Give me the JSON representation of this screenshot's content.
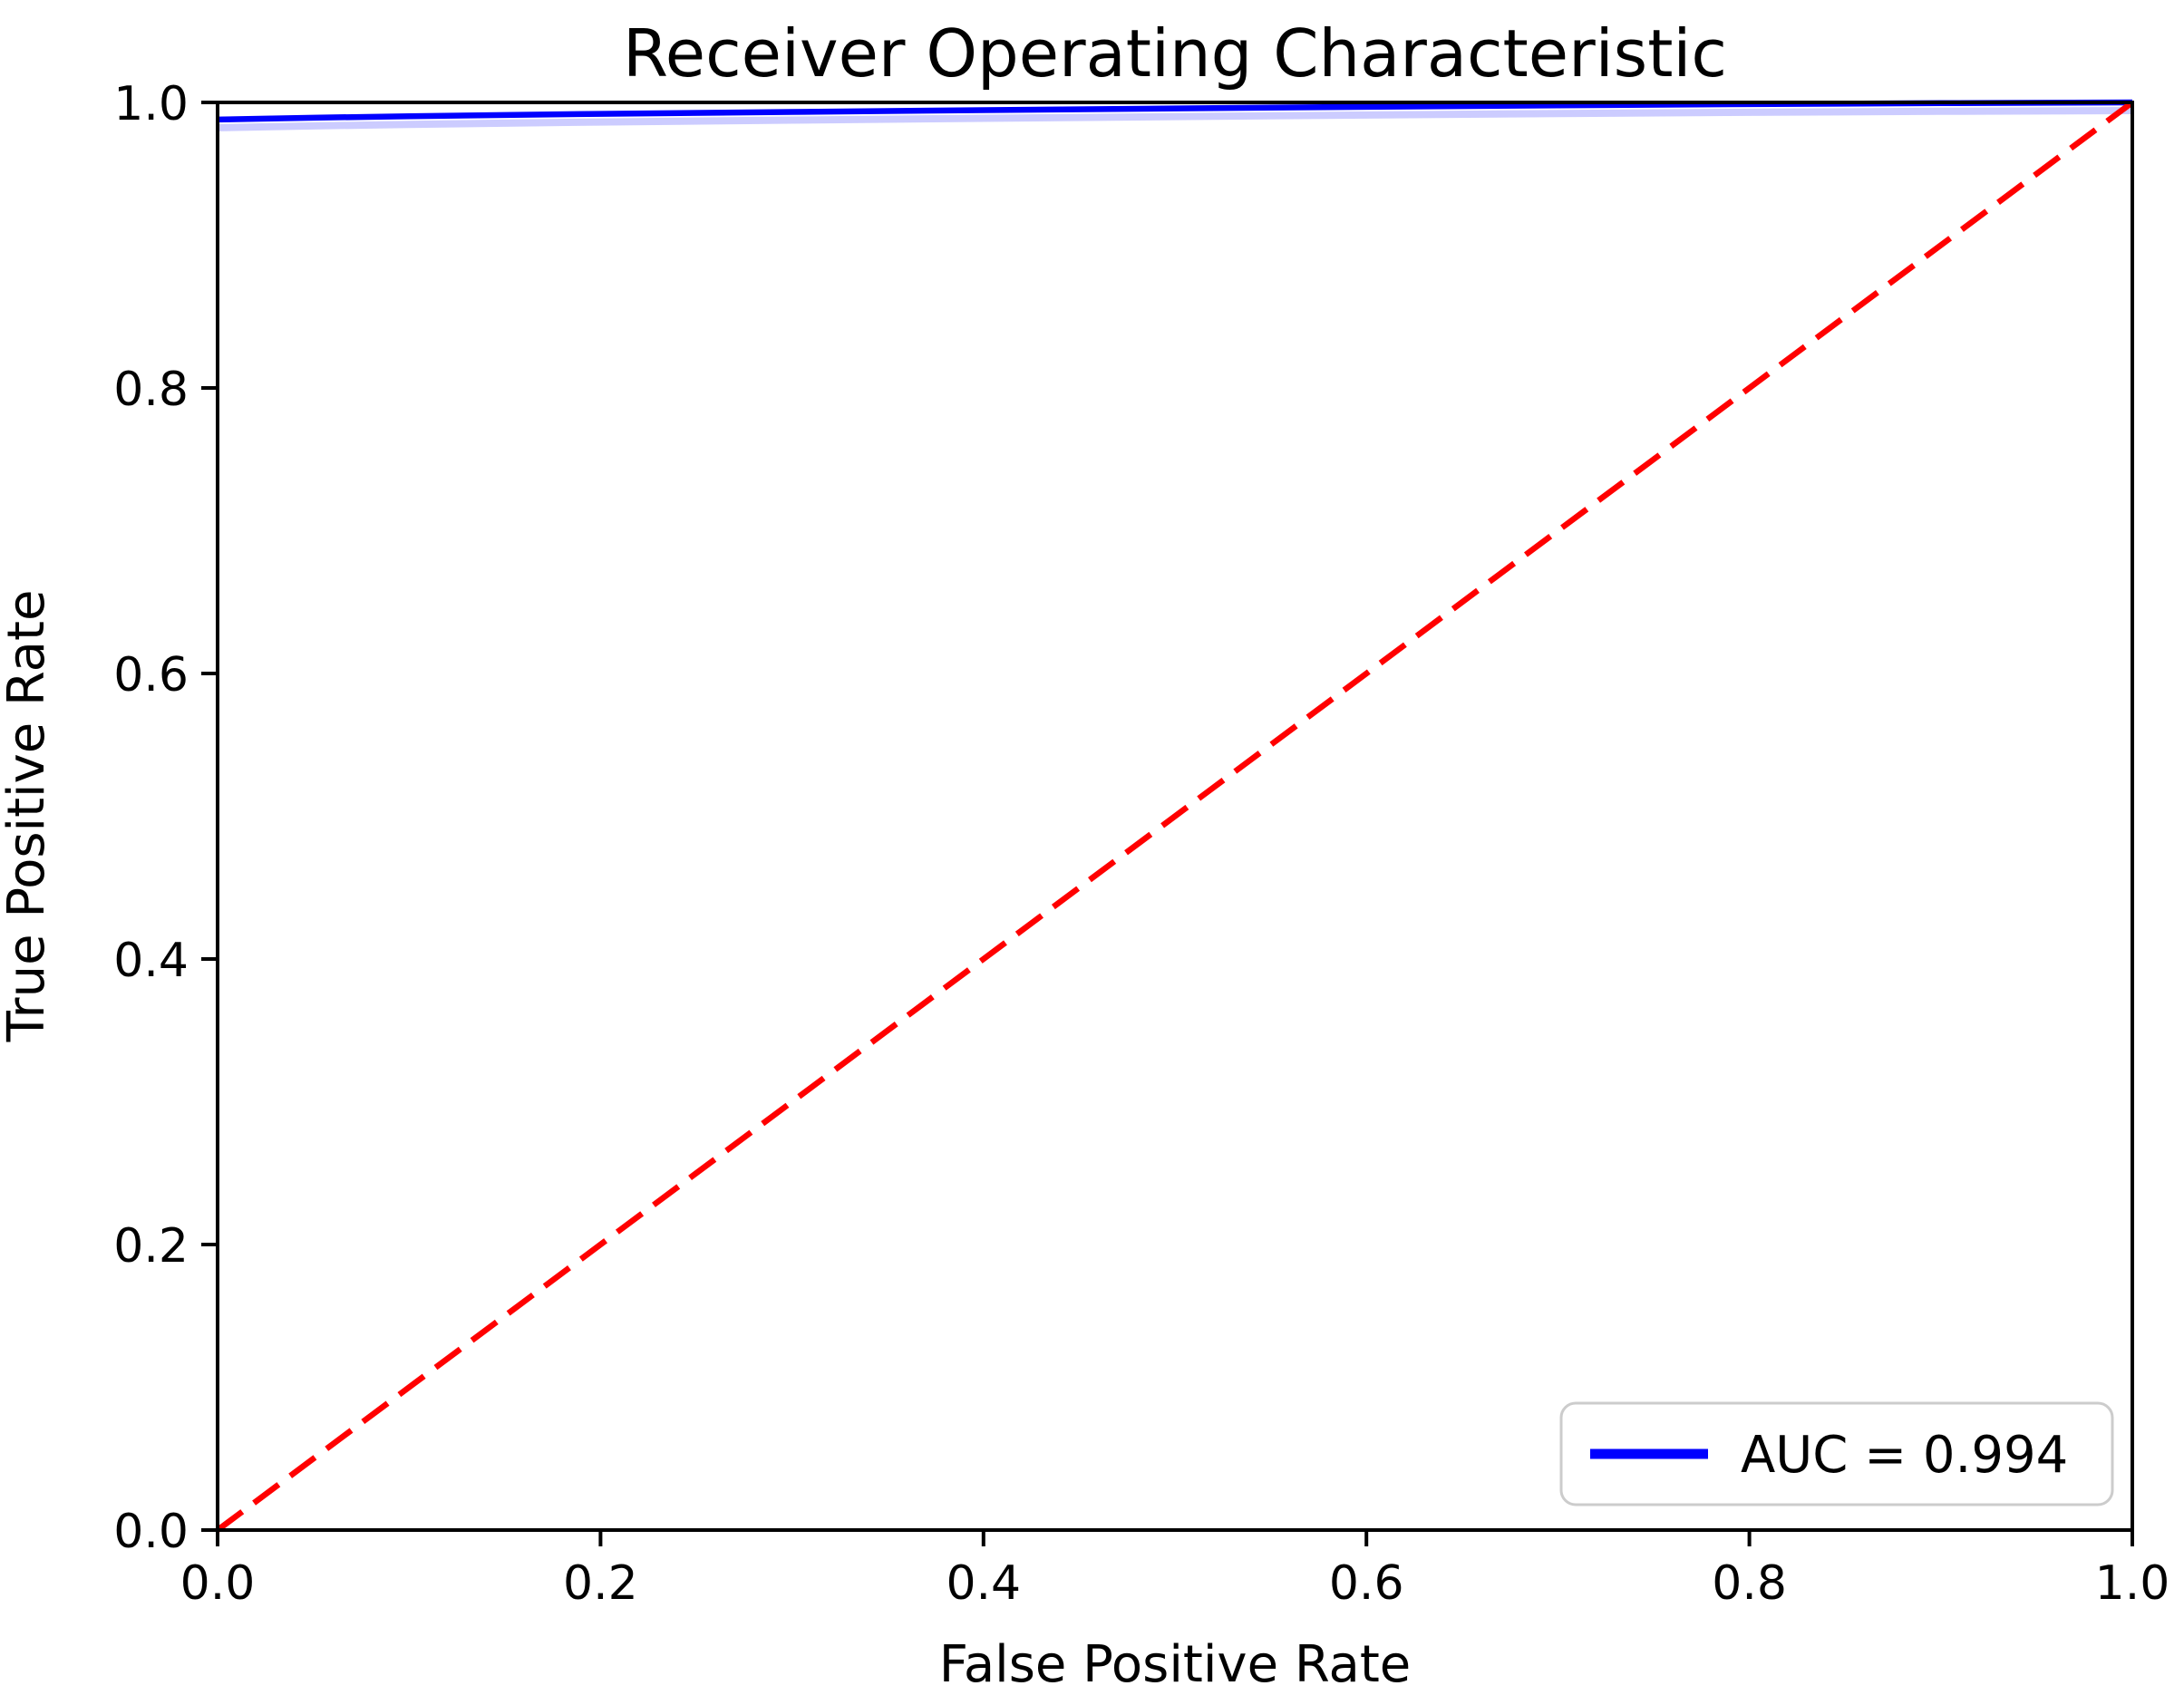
{
  "figure": {
    "background": "#ffffff",
    "text_color": "#000000",
    "spine_color": "#000000"
  },
  "chart_data": {
    "type": "line",
    "title": "Receiver Operating Characteristic",
    "xlabel": "False Positive Rate",
    "ylabel": "True Positive Rate",
    "xlim": [
      0.0,
      1.0
    ],
    "ylim": [
      0.0,
      1.0
    ],
    "x_ticks": [
      "0.0",
      "0.2",
      "0.4",
      "0.6",
      "0.8",
      "1.0"
    ],
    "y_ticks": [
      "0.0",
      "0.2",
      "0.4",
      "0.6",
      "0.8",
      "1.0"
    ],
    "grid": false,
    "auc": 0.994,
    "legend": {
      "position": "lower right",
      "border_color": "#cccccc",
      "background": "#ffffff",
      "entries": [
        {
          "label": "AUC = 0.994",
          "color": "#0000ff",
          "style": "solid"
        }
      ]
    },
    "series": [
      {
        "name": "ROC curve",
        "color": "#0000ff",
        "style": "solid",
        "points": [
          [
            0.0,
            0.0
          ],
          [
            0.0,
            0.988
          ],
          [
            0.05,
            0.9893
          ],
          [
            0.1,
            0.9903
          ],
          [
            0.15,
            0.9912
          ],
          [
            0.2,
            0.992
          ],
          [
            0.3,
            0.9933
          ],
          [
            0.4,
            0.9946
          ],
          [
            0.5,
            0.9958
          ],
          [
            0.6,
            0.9969
          ],
          [
            0.7,
            0.9979
          ],
          [
            0.8,
            0.9988
          ],
          [
            0.9,
            0.9995
          ],
          [
            1.0,
            1.0
          ]
        ]
      },
      {
        "name": "chance diagonal",
        "color": "#ff0000",
        "style": "dashed",
        "points": [
          [
            0.0,
            0.0
          ],
          [
            1.0,
            1.0
          ]
        ]
      }
    ]
  }
}
